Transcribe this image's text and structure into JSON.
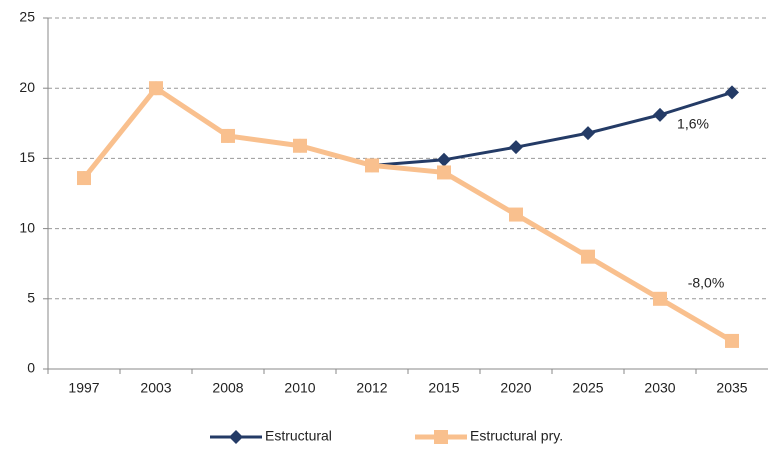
{
  "chart_data": {
    "type": "line",
    "categories": [
      "1997",
      "2003",
      "2008",
      "2010",
      "2012",
      "2015",
      "2020",
      "2025",
      "2030",
      "2035"
    ],
    "series": [
      {
        "name": "Estructural",
        "color": "#243b66",
        "marker": "diamond",
        "values": [
          13.6,
          20.0,
          16.6,
          15.9,
          14.5,
          14.9,
          15.8,
          16.8,
          18.1,
          19.7
        ]
      },
      {
        "name": "Estructural pry.",
        "color": "#f9c08e",
        "marker": "square",
        "values": [
          13.6,
          20.0,
          16.6,
          15.9,
          14.5,
          14.0,
          11.0,
          8.0,
          5.0,
          2.0
        ]
      }
    ],
    "annotations": [
      "1,6%",
      "-8,0%"
    ],
    "ylim": [
      0,
      25
    ],
    "yticks": [
      0,
      5,
      10,
      15,
      20,
      25
    ],
    "grid": true,
    "legend": "bottom"
  }
}
